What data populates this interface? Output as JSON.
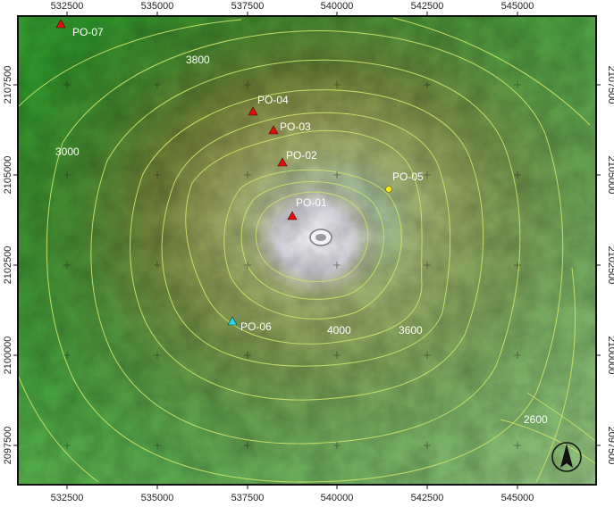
{
  "map": {
    "x_ticks": [
      "532500",
      "535000",
      "537500",
      "540000",
      "542500",
      "545000"
    ],
    "y_ticks": [
      "2107500",
      "2105000",
      "2102500",
      "2100000",
      "2097500"
    ],
    "stations": [
      {
        "label": "PO-01",
        "color": "#e01010"
      },
      {
        "label": "PO-02",
        "color": "#e01010"
      },
      {
        "label": "PO-03",
        "color": "#e01010"
      },
      {
        "label": "PO-04",
        "color": "#e01010"
      },
      {
        "label": "PO-05",
        "color": "#f5e61a"
      },
      {
        "label": "PO-06",
        "color": "#2fd5e0"
      },
      {
        "label": "PO-07",
        "color": "#e01010"
      }
    ],
    "contour_labels": [
      "3800",
      "3000",
      "4000",
      "3600",
      "2600"
    ],
    "north_arrow_icon": "north-arrow-icon",
    "colors": {
      "lowland_green": "#2f8f2a",
      "midslope_olive": "#6f7a2a",
      "summit_tan": "#bfae78",
      "crater_grey": "#d8d8e2",
      "contour_line": "#c8e36a"
    }
  }
}
